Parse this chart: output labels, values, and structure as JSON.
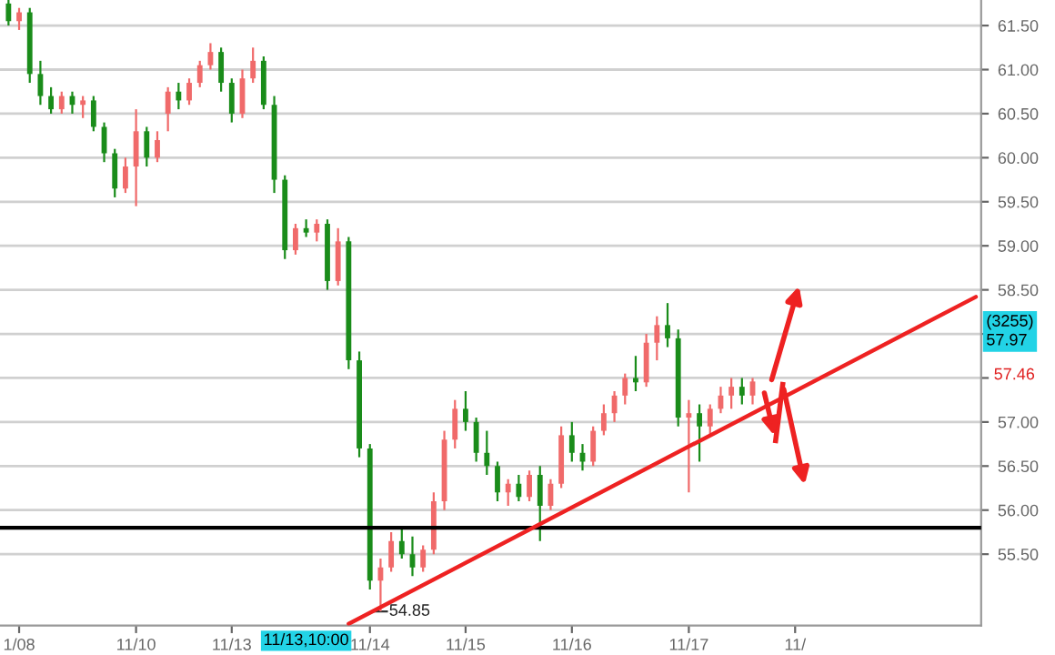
{
  "chart_data": {
    "type": "candlestick",
    "categories": [
      null,
      "1/08",
      null,
      null,
      null,
      null,
      null,
      null,
      null,
      null,
      null,
      null,
      "11/10",
      null,
      null,
      null,
      null,
      null,
      null,
      null,
      null,
      "11/13",
      null,
      null,
      null,
      null,
      null,
      null,
      null,
      null,
      null,
      null,
      null,
      null,
      "11/14",
      null,
      null,
      null,
      null,
      null,
      null,
      null,
      null,
      "11/15",
      null,
      null,
      null,
      null,
      null,
      null,
      null,
      null,
      null,
      "11/16",
      null,
      null,
      null,
      null,
      null,
      null,
      null,
      null,
      null,
      null,
      "11/17",
      null,
      null,
      null,
      null,
      null,
      null,
      null,
      null,
      null,
      "11/",
      null,
      null,
      null,
      null,
      null,
      null,
      null,
      null,
      null,
      null,
      null,
      null,
      null,
      null,
      null,
      null,
      null
    ],
    "ohlc": [
      [
        61.75,
        61.79,
        61.5,
        61.55
      ],
      [
        61.55,
        61.7,
        61.45,
        61.65
      ],
      [
        61.65,
        61.7,
        60.85,
        60.95
      ],
      [
        60.95,
        61.1,
        60.6,
        60.7
      ],
      [
        60.7,
        60.8,
        60.5,
        60.55
      ],
      [
        60.55,
        60.75,
        60.5,
        60.7
      ],
      [
        60.7,
        60.75,
        60.5,
        60.6
      ],
      [
        60.6,
        60.7,
        60.45,
        60.65
      ],
      [
        60.65,
        60.7,
        60.3,
        60.35
      ],
      [
        60.35,
        60.4,
        59.95,
        60.05
      ],
      [
        60.05,
        60.1,
        59.55,
        59.65
      ],
      [
        59.65,
        60.0,
        59.6,
        59.9
      ],
      [
        59.9,
        60.55,
        59.45,
        60.3
      ],
      [
        60.3,
        60.35,
        59.9,
        60.0
      ],
      [
        60.0,
        60.3,
        59.95,
        60.2
      ],
      [
        60.5,
        60.8,
        60.3,
        60.75
      ],
      [
        60.75,
        60.85,
        60.55,
        60.65
      ],
      [
        60.65,
        60.9,
        60.6,
        60.85
      ],
      [
        60.85,
        61.1,
        60.8,
        61.05
      ],
      [
        61.05,
        61.3,
        61.0,
        61.2
      ],
      [
        61.2,
        61.25,
        60.75,
        60.85
      ],
      [
        60.85,
        60.9,
        60.4,
        60.5
      ],
      [
        60.5,
        61.0,
        60.45,
        60.9
      ],
      [
        60.9,
        61.25,
        60.85,
        61.1
      ],
      [
        61.1,
        61.15,
        60.55,
        60.6
      ],
      [
        60.6,
        60.7,
        59.6,
        59.75
      ],
      [
        59.75,
        59.8,
        58.85,
        58.95
      ],
      [
        58.95,
        59.25,
        58.9,
        59.2
      ],
      [
        59.2,
        59.3,
        59.1,
        59.15
      ],
      [
        59.15,
        59.3,
        59.05,
        59.25
      ],
      [
        59.25,
        59.3,
        58.5,
        58.6
      ],
      [
        58.6,
        59.2,
        58.55,
        59.05
      ],
      [
        59.05,
        59.1,
        57.6,
        57.7
      ],
      [
        57.7,
        57.8,
        56.6,
        56.7
      ],
      [
        56.7,
        56.75,
        55.1,
        55.2
      ],
      [
        55.2,
        55.45,
        54.85,
        55.35
      ],
      [
        55.35,
        55.75,
        55.3,
        55.65
      ],
      [
        55.65,
        55.8,
        55.45,
        55.5
      ],
      [
        55.5,
        55.7,
        55.25,
        55.35
      ],
      [
        55.35,
        55.6,
        55.3,
        55.55
      ],
      [
        55.55,
        56.2,
        55.5,
        56.1
      ],
      [
        56.1,
        56.9,
        56.0,
        56.8
      ],
      [
        56.8,
        57.25,
        56.7,
        57.15
      ],
      [
        57.15,
        57.35,
        56.9,
        57.0
      ],
      [
        57.0,
        57.05,
        56.55,
        56.65
      ],
      [
        56.65,
        56.9,
        56.4,
        56.5
      ],
      [
        56.5,
        56.55,
        56.1,
        56.2
      ],
      [
        56.2,
        56.35,
        56.05,
        56.3
      ],
      [
        56.3,
        56.4,
        56.1,
        56.15
      ],
      [
        56.15,
        56.45,
        56.1,
        56.4
      ],
      [
        56.4,
        56.5,
        55.65,
        56.05
      ],
      [
        56.05,
        56.35,
        56.0,
        56.3
      ],
      [
        56.3,
        56.95,
        56.25,
        56.85
      ],
      [
        56.85,
        57.0,
        56.55,
        56.65
      ],
      [
        56.65,
        56.75,
        56.45,
        56.55
      ],
      [
        56.55,
        56.95,
        56.5,
        56.9
      ],
      [
        56.9,
        57.2,
        56.85,
        57.1
      ],
      [
        57.1,
        57.35,
        57.0,
        57.3
      ],
      [
        57.3,
        57.55,
        57.2,
        57.5
      ],
      [
        57.5,
        57.75,
        57.35,
        57.45
      ],
      [
        57.45,
        58.0,
        57.4,
        57.9
      ],
      [
        57.9,
        58.2,
        57.7,
        58.1
      ],
      [
        58.1,
        58.35,
        57.85,
        57.95
      ],
      [
        57.95,
        58.05,
        56.95,
        57.05
      ],
      [
        57.05,
        57.25,
        56.2,
        57.1
      ],
      [
        57.1,
        57.2,
        56.55,
        56.95
      ],
      [
        56.95,
        57.2,
        56.85,
        57.15
      ],
      [
        57.15,
        57.4,
        57.1,
        57.3
      ],
      [
        57.3,
        57.5,
        57.15,
        57.4
      ],
      [
        57.4,
        57.5,
        57.2,
        57.3
      ],
      [
        57.3,
        57.5,
        57.2,
        57.46
      ],
      null,
      null,
      null,
      null,
      null,
      null,
      null,
      null,
      null,
      null,
      null,
      null,
      null,
      null,
      null,
      null,
      null,
      null,
      null,
      null,
      null
    ],
    "series": [
      {
        "type": "line",
        "color": "#ee2222",
        "values": [
          null,
          null,
          null,
          null,
          null,
          null,
          null,
          null,
          null,
          null,
          null,
          null,
          null,
          null,
          null,
          null,
          null,
          null,
          null,
          null,
          null,
          null,
          null,
          null,
          null,
          null,
          null,
          null,
          null,
          null,
          null,
          null,
          54.71,
          null,
          null,
          null,
          null,
          null,
          null,
          null,
          null,
          null,
          null,
          null,
          null,
          null,
          null,
          null,
          null,
          null,
          null,
          null,
          null,
          null,
          null,
          null,
          null,
          null,
          null,
          null,
          null,
          null,
          null,
          null,
          null,
          null,
          null,
          null,
          null,
          null,
          null,
          null,
          null,
          null,
          null,
          null,
          null,
          null,
          null,
          null,
          null,
          null,
          null,
          null,
          null,
          null,
          null,
          null,
          null,
          null,
          null,
          58.42
        ]
      }
    ],
    "ylim": [
      54.69,
      61.79
    ],
    "yticks": [
      {
        "value": 55.5,
        "label": "55.50"
      },
      {
        "value": 56.0,
        "label": "56.00"
      },
      {
        "value": 56.5,
        "label": "56.50"
      },
      {
        "value": 57.0,
        "label": "57.00"
      },
      {
        "value": 57.5,
        "label": null
      },
      {
        "value": 58.0,
        "label": null
      },
      {
        "value": 58.5,
        "label": "58.50"
      },
      {
        "value": 59.0,
        "label": "59.00"
      },
      {
        "value": 59.5,
        "label": "59.50"
      },
      {
        "value": 60.0,
        "label": "60.00"
      },
      {
        "value": 60.5,
        "label": "60.50"
      },
      {
        "value": 61.0,
        "label": "61.00"
      },
      {
        "value": 61.5,
        "label": "61.50"
      }
    ],
    "grid": "y",
    "ref_lines": [
      {
        "axis": "y",
        "value": 55.8,
        "color": "#000000"
      }
    ],
    "annotations": [
      "54.85",
      "11/13,10:00",
      "(3255)\n57.97",
      "57.46"
    ]
  }
}
